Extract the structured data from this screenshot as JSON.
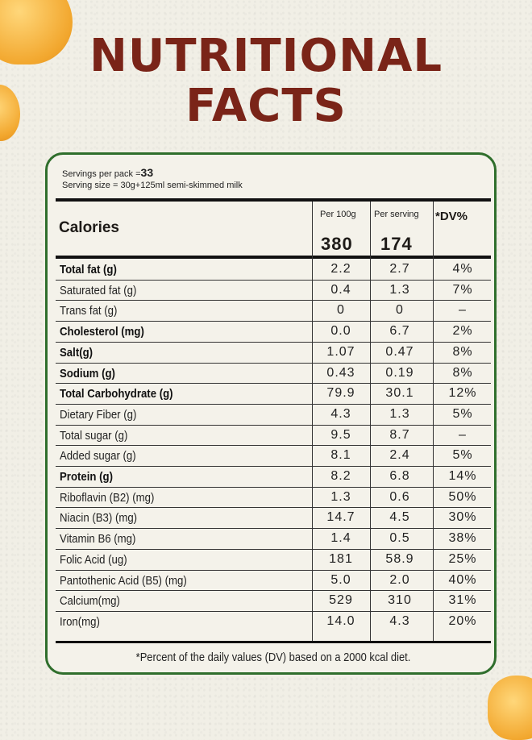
{
  "title": {
    "line1": "NUTRITIONAL",
    "line2": "FACTS"
  },
  "servings": {
    "per_pack_label": "Servings per pack =",
    "per_pack_value": "33",
    "serving_size": "Serving size = 30g+125ml semi-skimmed milk"
  },
  "header": {
    "per100g": "Per 100g",
    "perserving": "Per serving",
    "dv": "*DV%",
    "calories_label": "Calories",
    "calories_100g": "380",
    "calories_serving": "174"
  },
  "rows": [
    {
      "label": "Total fat (g)",
      "bold": true,
      "per100g": "2.2",
      "perserving": "2.7",
      "dv": "4%"
    },
    {
      "label": "Saturated fat (g)",
      "bold": false,
      "per100g": "0.4",
      "perserving": "1.3",
      "dv": "7%"
    },
    {
      "label": "Trans fat (g)",
      "bold": false,
      "per100g": "0",
      "perserving": "0",
      "dv": "–"
    },
    {
      "label": "Cholesterol (mg)",
      "bold": true,
      "per100g": "0.0",
      "perserving": "6.7",
      "dv": "2%"
    },
    {
      "label": "Salt(g)",
      "bold": true,
      "per100g": "1.07",
      "perserving": "0.47",
      "dv": "8%"
    },
    {
      "label": "Sodium (g)",
      "bold": true,
      "per100g": "0.43",
      "perserving": "0.19",
      "dv": "8%"
    },
    {
      "label": "Total Carbohydrate (g)",
      "bold": true,
      "per100g": "79.9",
      "perserving": "30.1",
      "dv": "12%"
    },
    {
      "label": "Dietary Fiber (g)",
      "bold": false,
      "per100g": "4.3",
      "perserving": "1.3",
      "dv": "5%"
    },
    {
      "label": "Total sugar (g)",
      "bold": false,
      "per100g": "9.5",
      "perserving": "8.7",
      "dv": "–"
    },
    {
      "label": "Added sugar (g)",
      "bold": false,
      "per100g": "8.1",
      "perserving": "2.4",
      "dv": "5%"
    },
    {
      "label": "Protein (g)",
      "bold": true,
      "per100g": "8.2",
      "perserving": "6.8",
      "dv": "14%"
    },
    {
      "label": "Riboflavin (B2) (mg)",
      "bold": false,
      "per100g": "1.3",
      "perserving": "0.6",
      "dv": "50%"
    },
    {
      "label": "Niacin (B3) (mg)",
      "bold": false,
      "per100g": "14.7",
      "perserving": "4.5",
      "dv": "30%"
    },
    {
      "label": "Vitamin B6 (mg)",
      "bold": false,
      "per100g": "1.4",
      "perserving": "0.5",
      "dv": "38%"
    },
    {
      "label": "Folic Acid (ug)",
      "bold": false,
      "per100g": "181",
      "perserving": "58.9",
      "dv": "25%"
    },
    {
      "label": "Pantothenic Acid (B5) (mg)",
      "bold": false,
      "per100g": "5.0",
      "perserving": "2.0",
      "dv": "40%"
    },
    {
      "label": "Calcium(mg)",
      "bold": false,
      "per100g": "529",
      "perserving": "310",
      "dv": "31%"
    },
    {
      "label": "Iron(mg)",
      "bold": false,
      "per100g": "14.0",
      "perserving": "4.3",
      "dv": "20%"
    }
  ],
  "footnote": "*Percent of the daily values (DV) based on a 2000 kcal diet.",
  "colors": {
    "title": "#7a2418",
    "border": "#2f6e2c",
    "background": "#f1efe6"
  }
}
